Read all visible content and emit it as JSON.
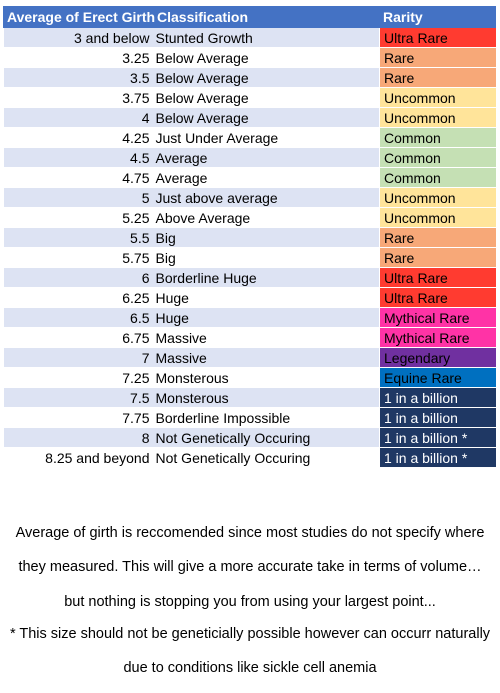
{
  "table": {
    "headers": {
      "size": "Average of Erect Girth",
      "classification": "Classification",
      "rarity": "Rarity"
    },
    "rows": [
      {
        "size": "3 and below",
        "classification": "Stunted Growth",
        "rarity": "Ultra Rare",
        "color": "#ff3b30",
        "text_color": "#000000"
      },
      {
        "size": "3.25",
        "classification": "Below Average",
        "rarity": "Rare",
        "color": "#f7a878",
        "text_color": "#000000"
      },
      {
        "size": "3.5",
        "classification": "Below Average",
        "rarity": "Rare",
        "color": "#f7a878",
        "text_color": "#000000"
      },
      {
        "size": "3.75",
        "classification": "Below Average",
        "rarity": "Uncommon",
        "color": "#ffe49a",
        "text_color": "#000000"
      },
      {
        "size": "4",
        "classification": "Below Average",
        "rarity": "Uncommon",
        "color": "#ffe49a",
        "text_color": "#000000"
      },
      {
        "size": "4.25",
        "classification": "Just Under Average",
        "rarity": "Common",
        "color": "#c5e0b4",
        "text_color": "#000000"
      },
      {
        "size": "4.5",
        "classification": "Average",
        "rarity": "Common",
        "color": "#c5e0b4",
        "text_color": "#000000"
      },
      {
        "size": "4.75",
        "classification": "Average",
        "rarity": "Common",
        "color": "#c5e0b4",
        "text_color": "#000000"
      },
      {
        "size": "5",
        "classification": "Just above average",
        "rarity": "Uncommon",
        "color": "#ffe49a",
        "text_color": "#000000"
      },
      {
        "size": "5.25",
        "classification": "Above Average",
        "rarity": "Uncommon",
        "color": "#ffe49a",
        "text_color": "#000000"
      },
      {
        "size": "5.5",
        "classification": "Big",
        "rarity": "Rare",
        "color": "#f7a878",
        "text_color": "#000000"
      },
      {
        "size": "5.75",
        "classification": "Big",
        "rarity": "Rare",
        "color": "#f7a878",
        "text_color": "#000000"
      },
      {
        "size": "6",
        "classification": "Borderline Huge",
        "rarity": "Ultra Rare",
        "color": "#ff3b30",
        "text_color": "#000000"
      },
      {
        "size": "6.25",
        "classification": "Huge",
        "rarity": "Ultra Rare",
        "color": "#ff3b30",
        "text_color": "#000000"
      },
      {
        "size": "6.5",
        "classification": "Huge",
        "rarity": "Mythical Rare",
        "color": "#ff33a6",
        "text_color": "#000000"
      },
      {
        "size": "6.75",
        "classification": "Massive",
        "rarity": "Mythical Rare",
        "color": "#ff33a6",
        "text_color": "#000000"
      },
      {
        "size": "7",
        "classification": "Massive",
        "rarity": "Legendary",
        "color": "#7030a0",
        "text_color": "#000000"
      },
      {
        "size": "7.25",
        "classification": "Monsterous",
        "rarity": "Equine Rare",
        "color": "#0070c0",
        "text_color": "#000000"
      },
      {
        "size": "7.5",
        "classification": "Monsterous",
        "rarity": "1 in a billion",
        "color": "#1f3864",
        "text_color": "#ffffff"
      },
      {
        "size": "7.75",
        "classification": "Borderline Impossible",
        "rarity": "1 in a billion",
        "color": "#1f3864",
        "text_color": "#ffffff"
      },
      {
        "size": "8",
        "classification": "Not Genetically Occuring",
        "rarity": "1 in a billion *",
        "color": "#1f3864",
        "text_color": "#ffffff"
      },
      {
        "size": "8.25 and beyond",
        "classification": "Not Genetically Occuring",
        "rarity": "1 in a billion *",
        "color": "#1f3864",
        "text_color": "#ffffff"
      }
    ]
  },
  "notes": {
    "note1_lines": [
      "Average of girth is reccomended since most studies do not specify where",
      "they measured.  This will give a more accurate take in terms of volume…",
      "but nothing is stopping you from using your largest point..."
    ],
    "note2_lines": [
      "* This size should not be geneticially possible however can occurr naturally",
      "due to conditions like sickle cell anemia"
    ]
  }
}
